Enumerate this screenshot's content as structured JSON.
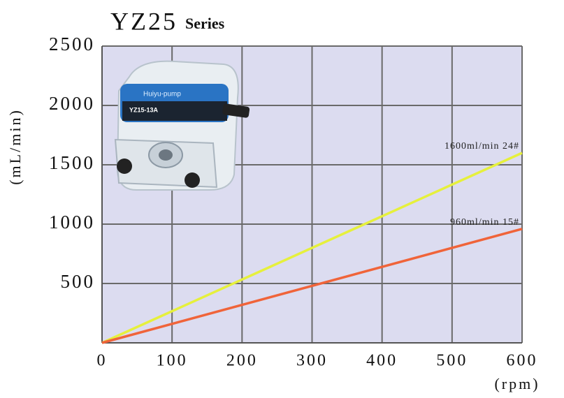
{
  "chart_data": {
    "type": "line",
    "title": "YZ25",
    "subtitle": "Series",
    "x_label": "(rpm)",
    "y_label": "(mL/min)",
    "x": [
      0,
      600
    ],
    "series": [
      {
        "name": "1600ml/min 24#",
        "color": "#e6f03c",
        "values": [
          0,
          1600
        ]
      },
      {
        "name": "960ml/min 15#",
        "color": "#f0643a",
        "values": [
          0,
          960
        ]
      }
    ],
    "xlim": [
      0,
      600
    ],
    "xticks": [
      0,
      100,
      200,
      300,
      400,
      500,
      600
    ],
    "ylim": [
      0,
      2500
    ],
    "yticks": [
      500,
      1000,
      1500,
      2000,
      2500
    ],
    "grid": true,
    "image_text": [
      "Huiyu-pump",
      "YZ15-13A"
    ]
  }
}
